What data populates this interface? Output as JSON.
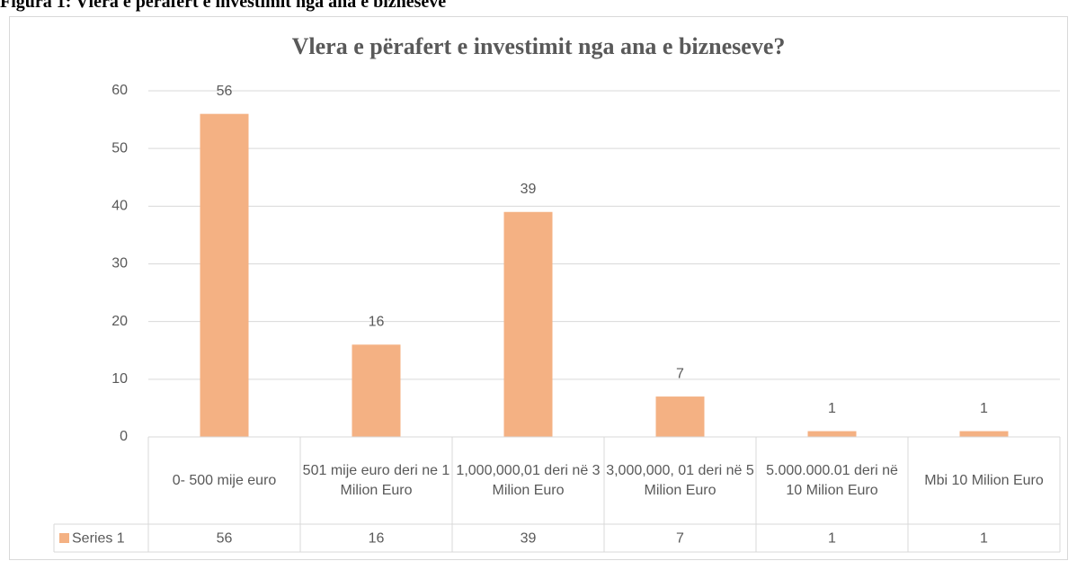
{
  "caption": "Figura 1: Vlera e përafert e investimit nga ana e bizneseve",
  "chart_data": {
    "type": "bar",
    "title": "Vlera e përafert e investimit nga ana e bizneseve?",
    "categories": [
      "0- 500 mije euro",
      "501 mije euro deri ne 1 Milion Euro",
      "1,000,000,01 deri në 3 Milion Euro",
      "3,000,000, 01 deri në 5 Milion Euro",
      "5.000.000.01 deri në 10 Milion Euro",
      "Mbi 10 Milion Euro"
    ],
    "series": [
      {
        "name": "Series 1",
        "color": "#f4b183",
        "values": [
          56,
          16,
          39,
          7,
          1,
          1
        ]
      }
    ],
    "ylim": [
      0,
      60
    ],
    "yticks": [
      0,
      10,
      20,
      30,
      40,
      50,
      60
    ],
    "grid": true,
    "data_table": true
  }
}
